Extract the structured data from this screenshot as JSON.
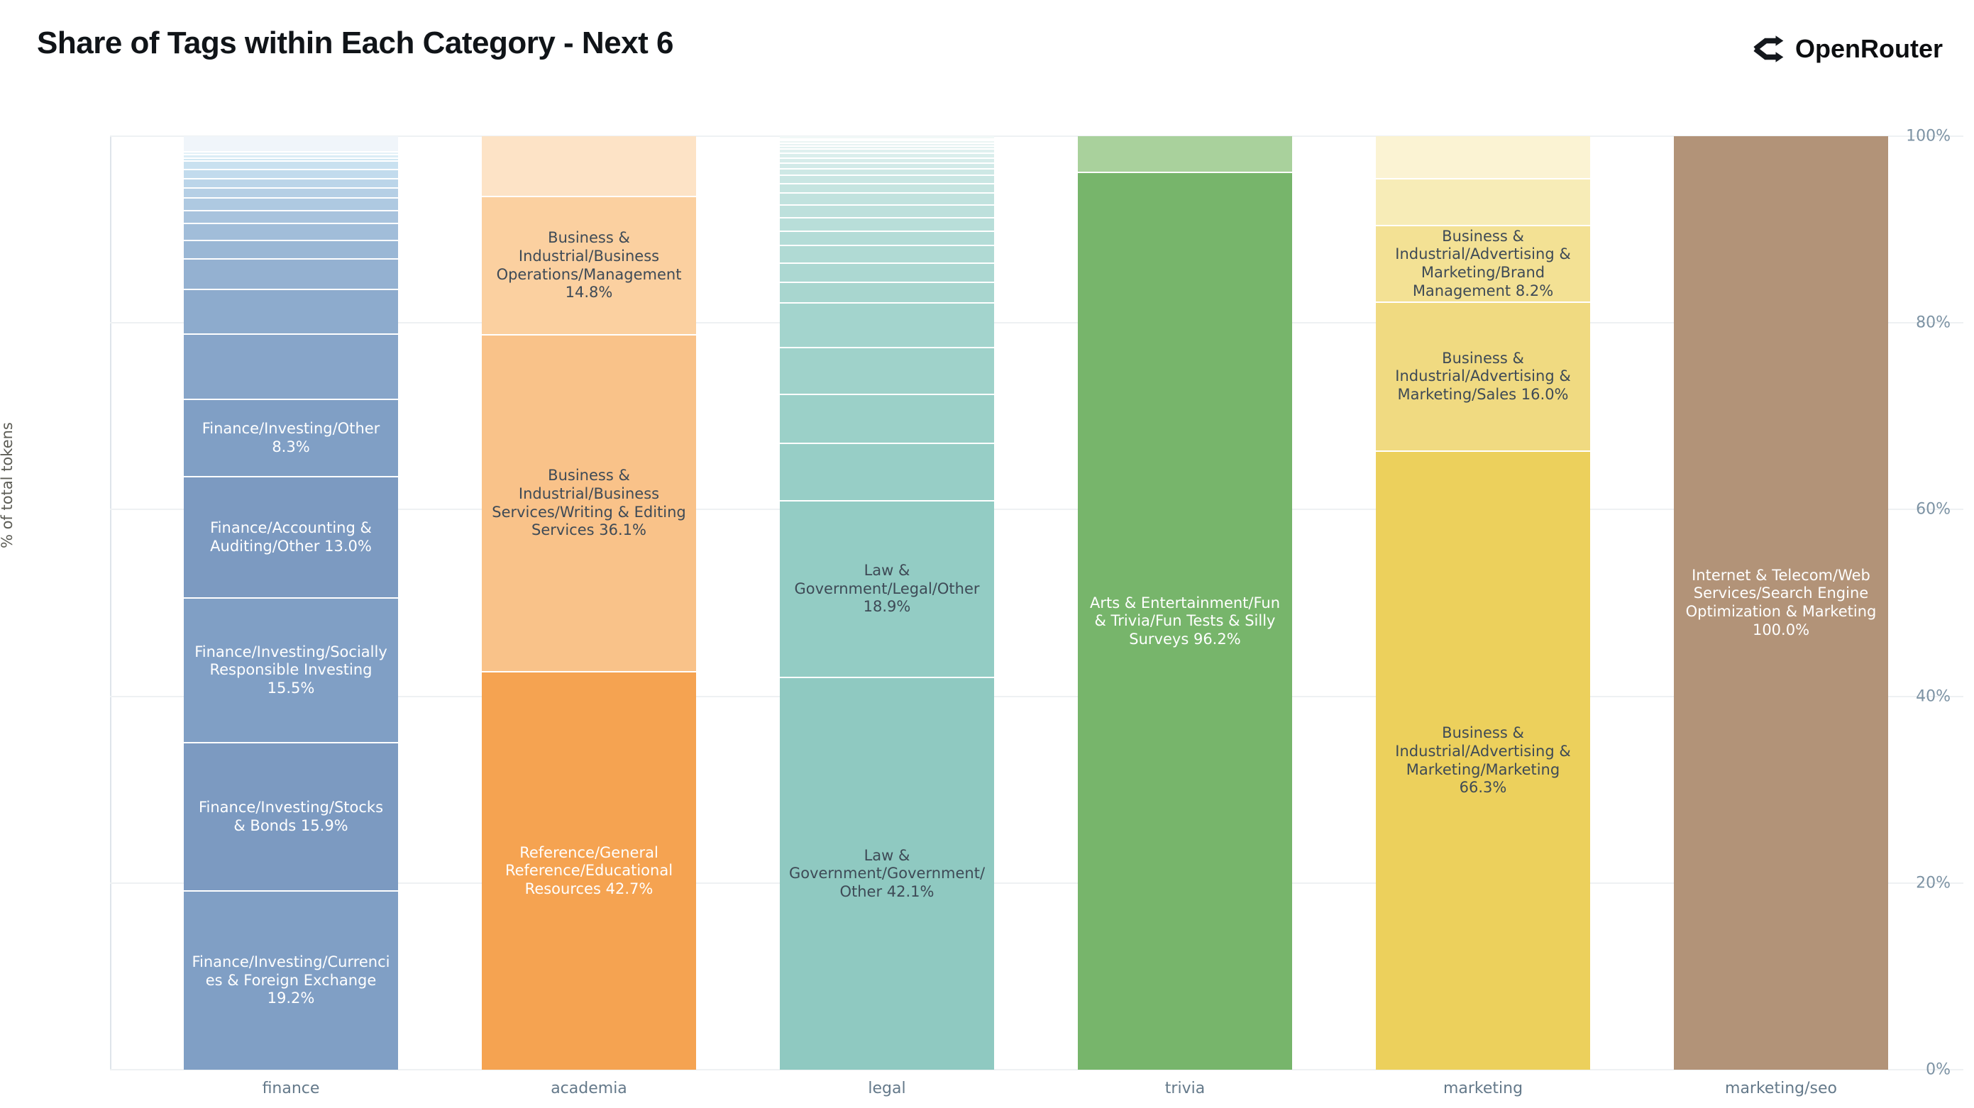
{
  "header": {
    "title": "Share of Tags within Each Category - Next 6",
    "brand": "OpenRouter"
  },
  "colors": {
    "title_text": "#101418",
    "axis_tick_text": "#7d93a4",
    "x_label_text": "#64798a",
    "y_title_text": "#5c5c55",
    "gridline": "#eef1f3",
    "segment_dark_text": "#3e4a56",
    "segment_light_text": "#ffffff",
    "separator": "#ffffff"
  },
  "chart_data": {
    "type": "bar",
    "variant": "stacked-100-percent",
    "title": "Share of Tags within Each Category - Next 6",
    "xlabel": "",
    "ylabel": "% of total tokens",
    "ylim": [
      0,
      100
    ],
    "ytick_values": [
      0,
      20,
      40,
      60,
      80,
      100
    ],
    "ytick_labels": [
      "0%",
      "20%",
      "40%",
      "60%",
      "80%",
      "100%"
    ],
    "grid": true,
    "legend": "none",
    "categories": [
      "finance",
      "academia",
      "legal",
      "trivia",
      "marketing",
      "marketing/seo"
    ],
    "note": "segments listed bottom-to-top; null label = small unlabeled tag slice (value estimated from pixels)",
    "bars": [
      {
        "category": "finance",
        "segments": [
          {
            "label": "Finance/Investing/Currencies & Foreign Exchange 19.2%",
            "value": 19.2,
            "color": "#809fc5",
            "label_color": "#ffffff"
          },
          {
            "label": "Finance/Investing/Stocks & Bonds 15.9%",
            "value": 15.9,
            "color": "#7c9ac1",
            "label_color": "#ffffff"
          },
          {
            "label": "Finance/Investing/Socially Responsible Investing 15.5%",
            "value": 15.5,
            "color": "#809fc5",
            "label_color": "#ffffff"
          },
          {
            "label": "Finance/Accounting & Auditing/Other 13.0%",
            "value": 13.0,
            "color": "#7c9ac1",
            "label_color": "#ffffff"
          },
          {
            "label": "Finance/Investing/Other 8.3%",
            "value": 8.3,
            "color": "#809fc5",
            "label_color": "#ffffff"
          },
          {
            "label": null,
            "value": 7.0,
            "color": "#87a5c9"
          },
          {
            "label": null,
            "value": 4.8,
            "color": "#8dabcd"
          },
          {
            "label": null,
            "value": 3.2,
            "color": "#94b1d1"
          },
          {
            "label": null,
            "value": 2.0,
            "color": "#9ab7d5"
          },
          {
            "label": null,
            "value": 1.8,
            "color": "#a1bdd9"
          },
          {
            "label": null,
            "value": 1.4,
            "color": "#a8c3dd"
          },
          {
            "label": null,
            "value": 1.4,
            "color": "#aec9e1"
          },
          {
            "label": null,
            "value": 1.0,
            "color": "#b5cfe5"
          },
          {
            "label": null,
            "value": 1.0,
            "color": "#bbd5e9"
          },
          {
            "label": null,
            "value": 1.0,
            "color": "#c2dbed"
          },
          {
            "label": null,
            "value": 0.9,
            "color": "#c9e1f0"
          },
          {
            "label": null,
            "value": 0.35,
            "color": "#d1e7f3"
          },
          {
            "label": null,
            "value": 0.35,
            "color": "#dbedf6"
          },
          {
            "label": null,
            "value": 0.3,
            "color": "#e4f1f8"
          },
          {
            "label": null,
            "value": 1.6,
            "color": "#f0f5fa"
          }
        ]
      },
      {
        "category": "academia",
        "segments": [
          {
            "label": "Reference/General Reference/Educational Resources 42.7%",
            "value": 42.7,
            "color": "#f5a351",
            "label_color": "#ffffff"
          },
          {
            "label": "Business & Industrial/Business Services/Writing & Editing Services 36.1%",
            "value": 36.1,
            "color": "#f9c289",
            "label_color": "#3e4a56"
          },
          {
            "label": "Business & Industrial/Business Operations/Management 14.8%",
            "value": 14.8,
            "color": "#fbd0a0",
            "label_color": "#3e4a56"
          },
          {
            "label": null,
            "value": 6.4,
            "color": "#fde3c6"
          }
        ]
      },
      {
        "category": "legal",
        "segments": [
          {
            "label": "Law & Government/Government/Other 42.1%",
            "value": 42.1,
            "color": "#8fc9c1",
            "label_color": "#3e4a56"
          },
          {
            "label": "Law & Government/Legal/Other 18.9%",
            "value": 18.9,
            "color": "#93ccc4",
            "label_color": "#3e4a56"
          },
          {
            "label": null,
            "value": 6.2,
            "color": "#97cec6"
          },
          {
            "label": null,
            "value": 5.2,
            "color": "#9bd0c8"
          },
          {
            "label": null,
            "value": 5.0,
            "color": "#9fd2ca"
          },
          {
            "label": null,
            "value": 4.8,
            "color": "#a3d4cd"
          },
          {
            "label": null,
            "value": 2.2,
            "color": "#a8d6cf"
          },
          {
            "label": null,
            "value": 2.1,
            "color": "#acd8d2"
          },
          {
            "label": null,
            "value": 1.9,
            "color": "#b0dad4"
          },
          {
            "label": null,
            "value": 1.5,
            "color": "#b4dcd7"
          },
          {
            "label": null,
            "value": 1.4,
            "color": "#b8ded9"
          },
          {
            "label": null,
            "value": 1.4,
            "color": "#bde0dc"
          },
          {
            "label": null,
            "value": 1.3,
            "color": "#c1e2de"
          },
          {
            "label": null,
            "value": 1.0,
            "color": "#c5e4e0"
          },
          {
            "label": null,
            "value": 0.9,
            "color": "#c9e6e3"
          },
          {
            "label": null,
            "value": 0.7,
            "color": "#cee8e5"
          },
          {
            "label": null,
            "value": 0.6,
            "color": "#d2eae8"
          },
          {
            "label": null,
            "value": 0.55,
            "color": "#d6ecea"
          },
          {
            "label": null,
            "value": 0.5,
            "color": "#daeeec"
          },
          {
            "label": null,
            "value": 0.45,
            "color": "#dff0ef"
          },
          {
            "label": null,
            "value": 0.35,
            "color": "#e3f2f1"
          },
          {
            "label": null,
            "value": 0.3,
            "color": "#e7f3f3"
          },
          {
            "label": null,
            "value": 0.25,
            "color": "#ebf5f4"
          },
          {
            "label": null,
            "value": 0.15,
            "color": "#edf6f5"
          },
          {
            "label": null,
            "value": 0.25,
            "color": "#f1f8f7"
          }
        ]
      },
      {
        "category": "trivia",
        "segments": [
          {
            "label": "Arts & Entertainment/Fun & Trivia/Fun Tests & Silly Surveys 96.2%",
            "value": 96.2,
            "color": "#77b56b",
            "label_color": "#ffffff"
          },
          {
            "label": null,
            "value": 3.8,
            "color": "#a9d19c"
          }
        ]
      },
      {
        "category": "marketing",
        "segments": [
          {
            "label": "Business & Industrial/Advertising & Marketing/Marketing 66.3%",
            "value": 66.3,
            "color": "#ecd05c",
            "label_color": "#3e4a56"
          },
          {
            "label": "Business & Industrial/Advertising & Marketing/Sales 16.0%",
            "value": 16.0,
            "color": "#f0da81",
            "label_color": "#3e4a56"
          },
          {
            "label": "Business & Industrial/Advertising & Marketing/Brand Management 8.2%",
            "value": 8.2,
            "color": "#f3e194",
            "label_color": "#3e4a56"
          },
          {
            "label": null,
            "value": 5.0,
            "color": "#f7ecb7"
          },
          {
            "label": null,
            "value": 4.5,
            "color": "#fbf3d3"
          }
        ]
      },
      {
        "category": "marketing/seo",
        "segments": [
          {
            "label": "Internet & Telecom/Web Services/Search Engine Optimization & Marketing 100.0%",
            "value": 100.0,
            "color": "#b29378",
            "label_color": "#ffffff"
          }
        ]
      }
    ]
  }
}
